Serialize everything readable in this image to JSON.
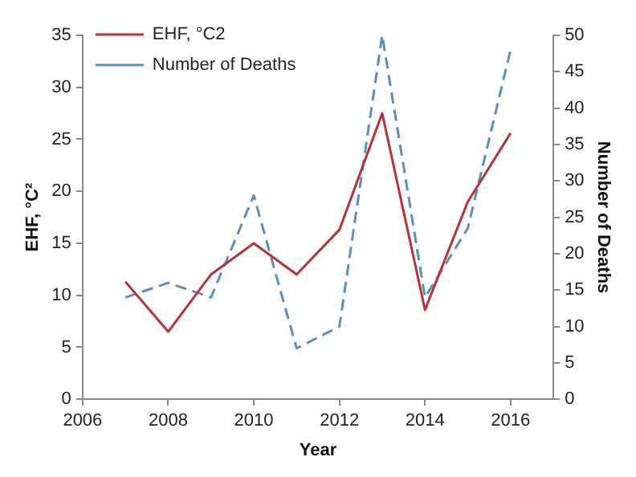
{
  "chart_data": {
    "type": "line",
    "xlabel": "Year",
    "ylabel": "EHF, °C²",
    "y2label": "Number of Deaths",
    "x": [
      2007,
      2008,
      2009,
      2010,
      2011,
      2012,
      2013,
      2014,
      2015,
      2016
    ],
    "series": [
      {
        "name": "EHF, °C2",
        "color": "#b5333b",
        "line_style": "solid",
        "values": [
          11.3,
          6.5,
          12,
          15,
          12,
          16.3,
          27.5,
          8.6,
          19,
          25.6
        ]
      },
      {
        "name": "Number of Deaths",
        "color": "#5b8fb9",
        "line_style": "dashed",
        "axis": "y2",
        "values": [
          14,
          16,
          14,
          28,
          7,
          10,
          50,
          14,
          23.5,
          48
        ]
      }
    ],
    "xlim": [
      2006,
      2017
    ],
    "xticks": [
      2006,
      2008,
      2010,
      2012,
      2014,
      2016
    ],
    "ylim": [
      0,
      35
    ],
    "yticks": [
      0,
      5,
      10,
      15,
      20,
      25,
      30,
      35
    ],
    "y2lim": [
      0,
      50
    ],
    "y2ticks": [
      0,
      5,
      10,
      15,
      20,
      25,
      30,
      35,
      40,
      45,
      50
    ],
    "grid": false,
    "legend": "top left",
    "marker": "none"
  }
}
